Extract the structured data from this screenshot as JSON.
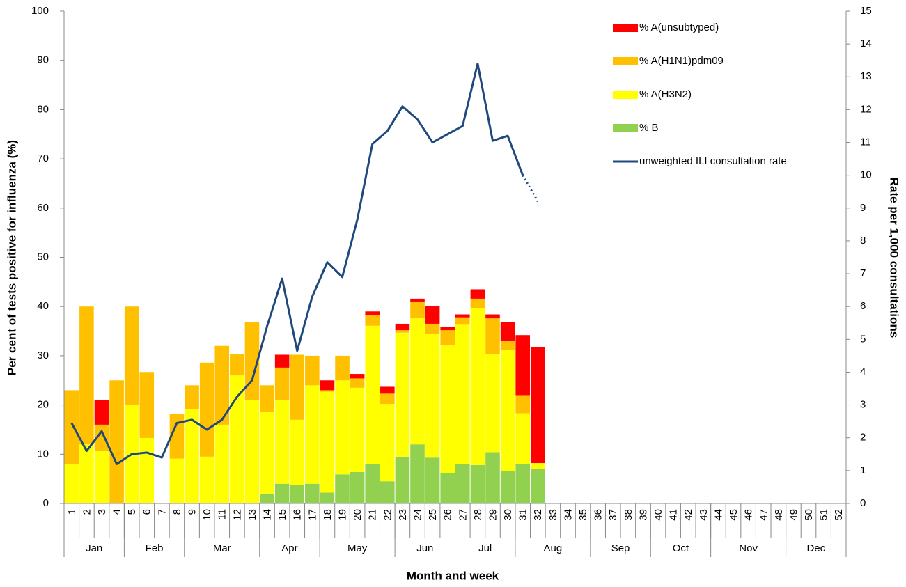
{
  "chart_data": {
    "type": "bar",
    "x_title": "Month and week",
    "y_title": "Per cent of tests positive for influenza (%)",
    "y2_title": "Rate per 1,000 consultations",
    "categories": [
      "1",
      "2",
      "3",
      "4",
      "5",
      "6",
      "7",
      "8",
      "9",
      "10",
      "11",
      "12",
      "13",
      "14",
      "15",
      "16",
      "17",
      "18",
      "19",
      "20",
      "21",
      "22",
      "23",
      "24",
      "25",
      "26",
      "27",
      "28",
      "29",
      "30",
      "31",
      "32",
      "33",
      "34",
      "35",
      "36",
      "37",
      "38",
      "39",
      "40",
      "41",
      "42",
      "43",
      "44",
      "45",
      "46",
      "47",
      "48",
      "49",
      "50",
      "51",
      "52"
    ],
    "months": [
      {
        "label": "Jan",
        "weeks": 4
      },
      {
        "label": "Feb",
        "weeks": 4
      },
      {
        "label": "Mar",
        "weeks": 5
      },
      {
        "label": "Apr",
        "weeks": 4
      },
      {
        "label": "May",
        "weeks": 5
      },
      {
        "label": "Jun",
        "weeks": 4
      },
      {
        "label": "Jul",
        "weeks": 4
      },
      {
        "label": "Aug",
        "weeks": 5
      },
      {
        "label": "Sep",
        "weeks": 4
      },
      {
        "label": "Oct",
        "weeks": 4
      },
      {
        "label": "Nov",
        "weeks": 5
      },
      {
        "label": "Dec",
        "weeks": 4
      }
    ],
    "stacked": true,
    "series": [
      {
        "name": "% B",
        "color": "#92d050",
        "values": [
          0,
          0,
          0,
          0,
          0,
          0,
          0,
          0,
          0,
          0,
          0,
          0,
          0,
          2,
          4,
          3.8,
          4,
          2.2,
          5.9,
          6.4,
          8,
          4.5,
          9.5,
          12,
          9.3,
          6.2,
          8,
          7.8,
          10.4,
          6.6,
          8,
          7,
          null,
          null,
          null,
          null,
          null,
          null,
          null,
          null,
          null,
          null,
          null,
          null,
          null,
          null,
          null,
          null,
          null,
          null,
          null,
          null
        ]
      },
      {
        "name": "% A(H3N2)",
        "color": "#ffff00",
        "values": [
          8,
          12,
          10.7,
          0,
          20,
          13.3,
          0,
          9.1,
          19.2,
          9.5,
          16,
          26,
          21,
          16.6,
          17,
          13.2,
          20,
          20.5,
          19.1,
          17.1,
          28.1,
          15.7,
          25.2,
          25.6,
          25.1,
          25.9,
          28.3,
          31.9,
          20,
          24.6,
          10.3,
          1.2,
          null,
          null,
          null,
          null,
          null,
          null,
          null,
          null,
          null,
          null,
          null,
          null,
          null,
          null,
          null,
          null,
          null,
          null,
          null,
          null
        ]
      },
      {
        "name": "% A(H1N1)pdm09",
        "color": "#ffc000",
        "values": [
          15,
          28,
          5.3,
          25,
          20,
          13.4,
          0,
          9.1,
          4.8,
          19.1,
          16,
          4.4,
          15.8,
          5.4,
          6.6,
          13.2,
          6,
          0.3,
          5,
          1.9,
          2.1,
          2.1,
          0.5,
          3.3,
          2.1,
          3.1,
          1.5,
          1.9,
          7.2,
          1.8,
          3.7,
          0,
          null,
          null,
          null,
          null,
          null,
          null,
          null,
          null,
          null,
          null,
          null,
          null,
          null,
          null,
          null,
          null,
          null,
          null,
          null,
          null
        ]
      },
      {
        "name": "% A(unsubtyped)",
        "color": "#ff0000",
        "values": [
          0,
          0,
          5,
          0,
          0,
          0,
          0,
          0,
          0,
          0,
          0,
          0,
          0,
          0,
          2.6,
          0,
          0,
          2,
          0,
          0.9,
          0.8,
          1.4,
          1.3,
          0.7,
          3.6,
          0.7,
          0.6,
          1.9,
          0.8,
          3.8,
          12.2,
          23.6,
          null,
          null,
          null,
          null,
          null,
          null,
          null,
          null,
          null,
          null,
          null,
          null,
          null,
          null,
          null,
          null,
          null,
          null,
          null,
          null
        ]
      },
      {
        "name": "unweighted ILI consultation rate",
        "color": "#1f497d",
        "type": "line",
        "axis": "y2",
        "dotted_from": 31,
        "values": [
          2.45,
          1.6,
          2.2,
          1.2,
          1.5,
          1.55,
          1.4,
          2.45,
          2.55,
          2.25,
          2.55,
          3.25,
          3.75,
          5.4,
          6.85,
          4.65,
          6.3,
          7.35,
          6.9,
          8.65,
          10.95,
          11.35,
          12.1,
          11.7,
          11.0,
          11.25,
          11.5,
          13.4,
          11.05,
          11.2,
          10.0,
          9.2,
          null,
          null,
          null,
          null,
          null,
          null,
          null,
          null,
          null,
          null,
          null,
          null,
          null,
          null,
          null,
          null,
          null,
          null,
          null,
          null
        ]
      }
    ],
    "ylim": [
      0,
      100
    ],
    "yticks": [
      0,
      10,
      20,
      30,
      40,
      50,
      60,
      70,
      80,
      90,
      100
    ],
    "y2lim": [
      0,
      15
    ],
    "y2ticks": [
      0,
      1,
      2,
      3,
      4,
      5,
      6,
      7,
      8,
      9,
      10,
      11,
      12,
      13,
      14,
      15
    ],
    "legend": "top-right"
  }
}
